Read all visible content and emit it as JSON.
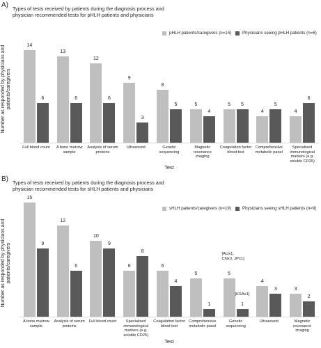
{
  "chart_data": [
    {
      "type": "bar",
      "panel": "A)",
      "title": "Types of tests received by patients during the diagnosis process and physician recommended tests for pHLH patients and physicians",
      "y_label": "Number as responded by physicians and patients/caregivers",
      "x_label": "Test",
      "categories": [
        "Full blood count",
        "A bone marrow sample",
        "Analysis of serum proteins",
        "Ultrasound",
        "Genetic sequencing",
        "Magnetic resonance imaging",
        "Coagulation factor blood test",
        "Comprehensive metabolic panel",
        "Specialised immunological markers (e.g. soluble CD25)"
      ],
      "series": [
        {
          "name": "pHLH patients/caregivers (n=14)",
          "color": "#bfbfbf",
          "values": [
            14,
            13,
            12,
            9,
            8,
            5,
            5,
            4,
            4
          ]
        },
        {
          "name": "Physicians seeing pHLH patients (n=6)",
          "color": "#595959",
          "values": [
            6,
            6,
            6,
            3,
            5,
            4,
            5,
            5,
            6
          ]
        }
      ],
      "ylim": [
        0,
        15
      ]
    },
    {
      "type": "bar",
      "panel": "B)",
      "title": "Types of tests received by patients during the diagnosis process and physician recommended tests for sHLH patients and physicians",
      "y_label": "Number as responded by physicians and patients/caregivers",
      "x_label": "Test",
      "categories": [
        "A bone marrow sample",
        "Analysis of serum proteins",
        "Full blood count",
        "Specialised immunological markers (e.g. soluble CD25)",
        "Coagulation factor blood test",
        "Comprehensive metabolic panel",
        "Genetic sequencing",
        "Ultrasound",
        "Magnetic resonance imaging"
      ],
      "series": [
        {
          "name": "sHLH patients/caregivers (n=19)",
          "color": "#bfbfbf",
          "values": [
            15,
            12,
            10,
            6,
            6,
            5,
            5,
            4,
            3
          ]
        },
        {
          "name": "Physicians seeing sHLH patients (n=9)",
          "color": "#595959",
          "values": [
            9,
            6,
            9,
            8,
            4,
            1,
            1,
            3,
            2
          ]
        }
      ],
      "annotations": [
        {
          "text": "[AUx1, CNx3, JPx1]",
          "category": "Genetic sequencing",
          "series": "sHLH patients/caregivers (n=19)"
        },
        {
          "text": "[KSAx1]",
          "category": "Genetic sequencing",
          "series": "Physicians seeing sHLH patients (n=9)"
        }
      ],
      "ylim": [
        0,
        16
      ]
    }
  ]
}
